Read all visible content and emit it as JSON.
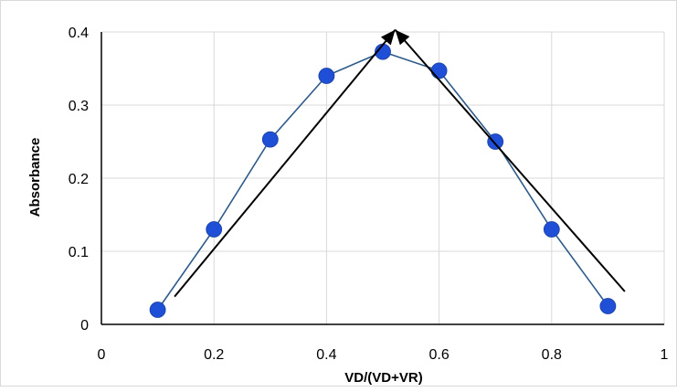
{
  "chart_data": {
    "type": "scatter",
    "title": "",
    "xlabel": "VD/(VD+VR)",
    "ylabel": "Absorbance",
    "xlim": [
      0,
      1
    ],
    "ylim": [
      0,
      0.4
    ],
    "x_ticks": [
      0,
      0.2,
      0.4,
      0.6,
      0.8,
      1
    ],
    "x_tick_labels": [
      "0",
      "0.2",
      "0.4",
      "0.6",
      "0.8",
      "1"
    ],
    "y_ticks": [
      0,
      0.1,
      0.2,
      0.3,
      0.4
    ],
    "y_tick_labels": [
      "0",
      "0.1",
      "0.2",
      "0.3",
      "0.4"
    ],
    "grid": true,
    "legend": "none",
    "series": [
      {
        "x": [
          0.1,
          0.2,
          0.3,
          0.4,
          0.5,
          0.6,
          0.7,
          0.8,
          0.9
        ],
        "y": [
          0.02,
          0.13,
          0.253,
          0.34,
          0.373,
          0.347,
          0.25,
          0.13,
          0.025
        ],
        "connected": true,
        "marker_color": "#1f4fd6",
        "line_color": "#2e5a8a"
      }
    ],
    "annotations": [
      {
        "type": "arrow",
        "from": [
          0.13,
          0.038
        ],
        "to": [
          0.522,
          0.403
        ]
      },
      {
        "type": "arrow",
        "from": [
          0.93,
          0.045
        ],
        "to": [
          0.522,
          0.403
        ]
      }
    ],
    "colors": {
      "grid": "#d9d9d9",
      "axis": "#000000",
      "arrow": "#000000"
    }
  }
}
